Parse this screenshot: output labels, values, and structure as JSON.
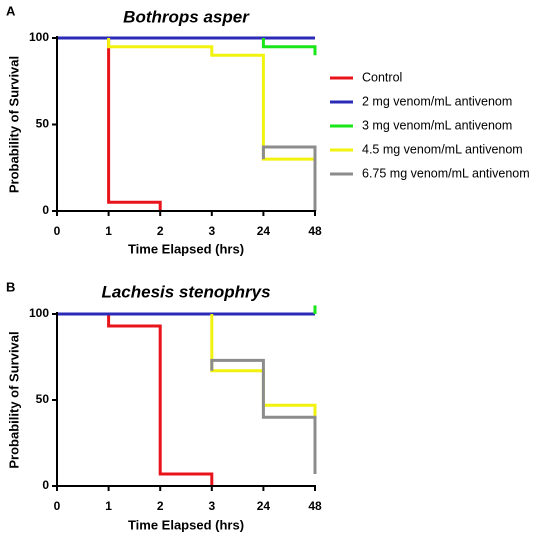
{
  "legend": {
    "entries": [
      {
        "label": "Control",
        "color": "#e8141b"
      },
      {
        "label": "2 mg venom/mL antivenom",
        "color": "#2b2bb8"
      },
      {
        "label": "3 mg venom/mL antivenom",
        "color": "#19e619"
      },
      {
        "label": "4.5 mg venom/mL antivenom",
        "color": "#f2f20f"
      },
      {
        "label": "6.75 mg venom/mL antivenom",
        "color": "#8c8c8c"
      }
    ]
  },
  "chart_data": [
    {
      "type": "line",
      "panel_label": "A",
      "title": "Bothrops asper",
      "xlabel": "Time Elapsed (hrs)",
      "ylabel": "Probability of Survival",
      "x_ticks": [
        "0",
        "1",
        "2",
        "3",
        "24",
        "48"
      ],
      "y_ticks": [
        "0",
        "50",
        "100"
      ],
      "ylim": [
        0,
        100
      ],
      "step": true,
      "series": [
        {
          "name": "Control",
          "color": "#e8141b",
          "points": [
            [
              "0",
              100
            ],
            [
              "1",
              100
            ],
            [
              "1",
              5
            ],
            [
              "2",
              5
            ],
            [
              "2",
              0
            ]
          ]
        },
        {
          "name": "2 mg venom/mL antivenom",
          "color": "#2b2bb8",
          "points": [
            [
              "0",
              100
            ],
            [
              "48",
              100
            ]
          ]
        },
        {
          "name": "3 mg venom/mL antivenom",
          "color": "#19e619",
          "points": [
            [
              "24",
              100
            ],
            [
              "24",
              95
            ],
            [
              "48",
              95
            ],
            [
              "48",
              90
            ]
          ]
        },
        {
          "name": "4.5 mg venom/mL antivenom",
          "color": "#f2f20f",
          "points": [
            [
              "1",
              100
            ],
            [
              "1",
              95
            ],
            [
              "3",
              95
            ],
            [
              "3",
              90
            ],
            [
              "24",
              90
            ],
            [
              "24",
              30
            ],
            [
              "48",
              30
            ],
            [
              "48",
              0
            ]
          ]
        },
        {
          "name": "6.75 mg venom/mL antivenom",
          "color": "#8c8c8c",
          "points": [
            [
              "24",
              30
            ],
            [
              "24",
              37
            ],
            [
              "48",
              37
            ],
            [
              "48",
              0
            ]
          ]
        }
      ]
    },
    {
      "type": "line",
      "panel_label": "B",
      "title": "Lachesis stenophrys",
      "xlabel": "Time Elapsed (hrs)",
      "ylabel": "Probability of Survival",
      "x_ticks": [
        "0",
        "1",
        "2",
        "3",
        "24",
        "48"
      ],
      "y_ticks": [
        "0",
        "50",
        "100"
      ],
      "ylim": [
        0,
        100
      ],
      "step": true,
      "series": [
        {
          "name": "Control",
          "color": "#e8141b",
          "points": [
            [
              "0",
              100
            ],
            [
              "1",
              100
            ],
            [
              "1",
              93
            ],
            [
              "2",
              93
            ],
            [
              "2",
              7
            ],
            [
              "3",
              7
            ],
            [
              "3",
              0
            ]
          ]
        },
        {
          "name": "2 mg venom/mL antivenom",
          "color": "#2b2bb8",
          "points": [
            [
              "0",
              100
            ],
            [
              "48",
              100
            ]
          ]
        },
        {
          "name": "3 mg venom/mL antivenom",
          "color": "#19e619",
          "points": [
            [
              "48",
              100
            ],
            [
              "48",
              105
            ]
          ]
        },
        {
          "name": "4.5 mg venom/mL antivenom",
          "color": "#f2f20f",
          "points": [
            [
              "3",
              100
            ],
            [
              "3",
              67
            ],
            [
              "24",
              67
            ],
            [
              "24",
              47
            ],
            [
              "48",
              47
            ],
            [
              "48",
              33
            ]
          ]
        },
        {
          "name": "6.75 mg venom/mL antivenom",
          "color": "#8c8c8c",
          "points": [
            [
              "3",
              67
            ],
            [
              "3",
              73
            ],
            [
              "24",
              73
            ],
            [
              "24",
              40
            ],
            [
              "48",
              40
            ],
            [
              "48",
              7
            ]
          ]
        }
      ]
    }
  ]
}
